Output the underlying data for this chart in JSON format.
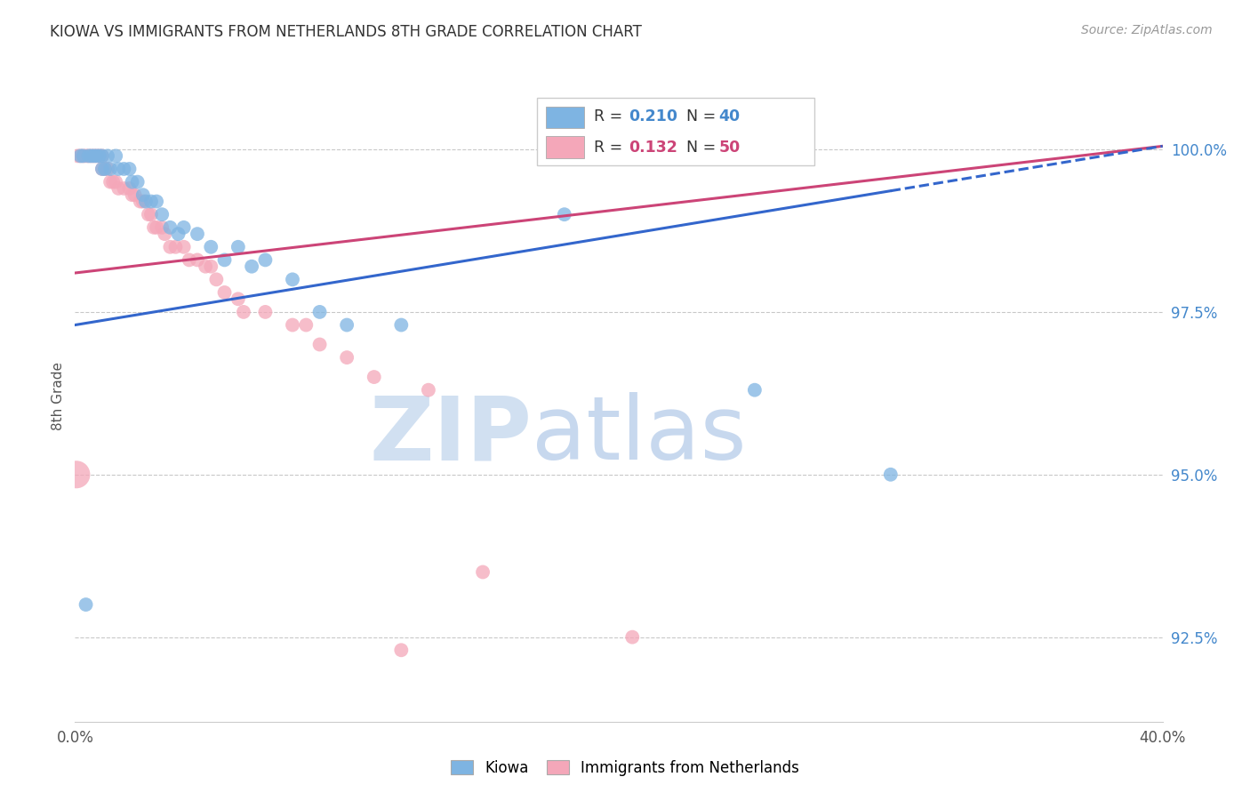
{
  "title": "KIOWA VS IMMIGRANTS FROM NETHERLANDS 8TH GRADE CORRELATION CHART",
  "source": "Source: ZipAtlas.com",
  "ylabel": "8th Grade",
  "yticks": [
    92.5,
    95.0,
    97.5,
    100.0
  ],
  "ytick_labels": [
    "92.5%",
    "95.0%",
    "97.5%",
    "100.0%"
  ],
  "xlim": [
    0.0,
    40.0
  ],
  "ylim": [
    91.2,
    101.2
  ],
  "legend_label_blue": "Kiowa",
  "legend_label_pink": "Immigrants from Netherlands",
  "blue_color": "#7EB4E2",
  "pink_color": "#F4A7B9",
  "trend_blue_color": "#3366CC",
  "trend_pink_color": "#CC4477",
  "blue_scatter_x": [
    0.2,
    0.3,
    0.5,
    0.6,
    0.7,
    0.8,
    0.9,
    1.0,
    1.0,
    1.1,
    1.2,
    1.3,
    1.5,
    1.6,
    1.8,
    2.0,
    2.1,
    2.3,
    2.5,
    2.6,
    2.8,
    3.0,
    3.2,
    3.5,
    3.8,
    4.0,
    4.5,
    5.0,
    5.5,
    6.0,
    6.5,
    7.0,
    8.0,
    9.0,
    10.0,
    12.0,
    18.0,
    25.0,
    0.4,
    30.0
  ],
  "blue_scatter_y": [
    99.9,
    99.9,
    99.9,
    99.9,
    99.9,
    99.9,
    99.9,
    99.9,
    99.7,
    99.7,
    99.9,
    99.7,
    99.9,
    99.7,
    99.7,
    99.7,
    99.5,
    99.5,
    99.3,
    99.2,
    99.2,
    99.2,
    99.0,
    98.8,
    98.7,
    98.8,
    98.7,
    98.5,
    98.3,
    98.5,
    98.2,
    98.3,
    98.0,
    97.5,
    97.3,
    97.3,
    99.0,
    96.3,
    93.0,
    95.0
  ],
  "pink_scatter_x": [
    0.1,
    0.2,
    0.3,
    0.4,
    0.5,
    0.6,
    0.7,
    0.8,
    0.9,
    1.0,
    1.0,
    1.1,
    1.2,
    1.3,
    1.4,
    1.5,
    1.6,
    1.8,
    2.0,
    2.1,
    2.2,
    2.4,
    2.5,
    2.7,
    2.8,
    2.9,
    3.0,
    3.2,
    3.3,
    3.5,
    3.7,
    4.0,
    4.2,
    4.5,
    4.8,
    5.0,
    5.2,
    5.5,
    6.0,
    6.2,
    7.0,
    8.0,
    8.5,
    9.0,
    10.0,
    11.0,
    12.0,
    13.0,
    15.0,
    20.5
  ],
  "pink_scatter_y": [
    99.9,
    99.9,
    99.9,
    99.9,
    99.9,
    99.9,
    99.9,
    99.9,
    99.9,
    99.9,
    99.7,
    99.7,
    99.7,
    99.5,
    99.5,
    99.5,
    99.4,
    99.4,
    99.4,
    99.3,
    99.3,
    99.2,
    99.2,
    99.0,
    99.0,
    98.8,
    98.8,
    98.8,
    98.7,
    98.5,
    98.5,
    98.5,
    98.3,
    98.3,
    98.2,
    98.2,
    98.0,
    97.8,
    97.7,
    97.5,
    97.5,
    97.3,
    97.3,
    97.0,
    96.8,
    96.5,
    92.3,
    96.3,
    93.5,
    92.5
  ],
  "blue_trend_x0": 0.0,
  "blue_trend_y0": 97.3,
  "blue_trend_x1": 40.0,
  "blue_trend_y1": 100.05,
  "blue_solid_x1": 30.0,
  "blue_solid_y1": 99.5,
  "pink_trend_x0": 0.0,
  "pink_trend_y0": 98.1,
  "pink_trend_x1": 40.0,
  "pink_trend_y1": 100.05,
  "watermark_zip": "ZIP",
  "watermark_atlas": "atlas",
  "background_color": "#ffffff",
  "grid_color": "#bbbbbb",
  "marker_size": 130,
  "legend_r_color_blue": "#4488cc",
  "legend_r_color_pink": "#cc4477",
  "legend_n_color_blue": "#4488cc",
  "legend_n_color_pink": "#cc4477",
  "legend_blue_r": "0.210",
  "legend_blue_n": "40",
  "legend_pink_r": "0.132",
  "legend_pink_n": "50"
}
